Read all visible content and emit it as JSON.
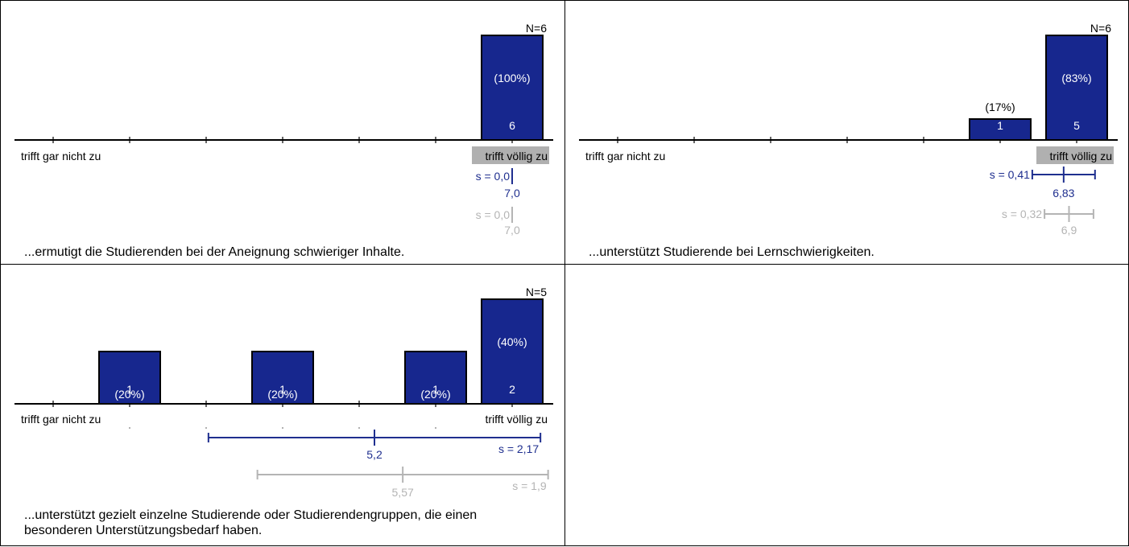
{
  "colors": {
    "bar_fill": "#17278e",
    "bar_stroke": "#000000",
    "primary_stats": "#1f2f8f",
    "secondary_stats": "#b4b4b4",
    "label_highlight_bg": "#b0b0b0"
  },
  "scale": {
    "left_label": "trifft gar nicht zu",
    "right_label": "trifft völlig zu",
    "points": 7
  },
  "chart_data": [
    {
      "type": "bar",
      "n_label": "N=6",
      "categories": [
        1,
        2,
        3,
        4,
        5,
        6,
        7
      ],
      "values": [
        0,
        0,
        0,
        0,
        0,
        0,
        6
      ],
      "percent_labels": [
        "",
        "",
        "",
        "",
        "",
        "",
        "(100%)"
      ],
      "count_labels": [
        "",
        "",
        "",
        "",
        "",
        "",
        "6"
      ],
      "highlight_label": "right",
      "primary": {
        "mean": 7.0,
        "mean_label": "7,0",
        "sd": 0.0,
        "sd_label": "s = 0,0"
      },
      "secondary": {
        "mean": 7.0,
        "mean_label": "7,0",
        "sd": 0.0,
        "sd_label": "s = 0,0"
      },
      "caption": "...ermutigt die Studierenden bei der Aneignung schwieriger Inhalte."
    },
    {
      "type": "bar",
      "n_label": "N=6",
      "categories": [
        1,
        2,
        3,
        4,
        5,
        6,
        7
      ],
      "values": [
        0,
        0,
        0,
        0,
        0,
        1,
        5
      ],
      "percent_labels": [
        "",
        "",
        "",
        "",
        "",
        "(17%)",
        "(83%)"
      ],
      "count_labels": [
        "",
        "",
        "",
        "",
        "",
        "1",
        "5"
      ],
      "highlight_label": "right",
      "primary": {
        "mean": 6.83,
        "mean_label": "6,83",
        "sd": 0.41,
        "sd_label": "s = 0,41"
      },
      "secondary": {
        "mean": 6.9,
        "mean_label": "6,9",
        "sd": 0.32,
        "sd_label": "s = 0,32"
      },
      "caption": "...unterstützt Studierende bei Lernschwierigkeiten."
    },
    {
      "type": "bar",
      "n_label": "N=5",
      "categories": [
        1,
        2,
        3,
        4,
        5,
        6,
        7
      ],
      "values": [
        0,
        1,
        0,
        1,
        0,
        1,
        2
      ],
      "percent_labels": [
        "",
        "(20%)",
        "",
        "(20%)",
        "",
        "(20%)",
        "(40%)"
      ],
      "count_labels": [
        "",
        "1",
        "",
        "1",
        "",
        "1",
        "2"
      ],
      "highlight_label": "none",
      "primary": {
        "mean": 5.2,
        "mean_label": "5,2",
        "sd": 2.17,
        "sd_label": "s = 2,17"
      },
      "secondary": {
        "mean": 5.57,
        "mean_label": "5,57",
        "sd": 1.9,
        "sd_label": "s = 1,9"
      },
      "caption": "...unterstützt gezielt einzelne Studierende oder Studierendengruppen, die einen besonderen Unterstützungsbedarf haben."
    }
  ]
}
